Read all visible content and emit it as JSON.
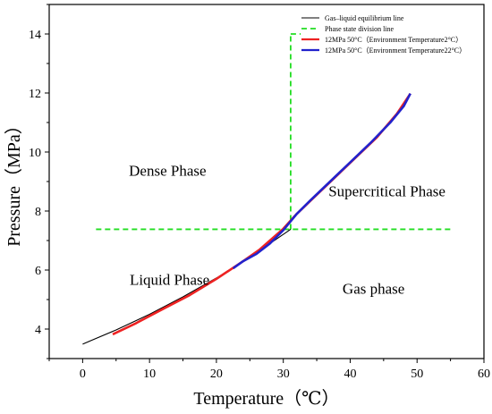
{
  "chart_data": {
    "type": "line",
    "xlabel": "Temperature（℃）",
    "ylabel": "Pressure（MPa）",
    "xlim": [
      -5,
      60
    ],
    "ylim": [
      3,
      15
    ],
    "x_ticks": [
      "0",
      "10",
      "20",
      "30",
      "40",
      "50",
      "60"
    ],
    "y_ticks": [
      "4",
      "6",
      "8",
      "10",
      "12",
      "14"
    ],
    "grid": false,
    "legend_position": "top-right",
    "colors": {
      "equilibrium": "#000000",
      "division": "#22dd22",
      "env2": "#ee2222",
      "env22": "#2222cc"
    },
    "series": [
      {
        "name": "Gas–liquid equilibrium line",
        "x": [
          0,
          5,
          10,
          15,
          20,
          25,
          31.1
        ],
        "y": [
          3.49,
          3.97,
          4.5,
          5.09,
          5.73,
          6.43,
          7.38
        ]
      },
      {
        "name": "Phase state division line",
        "segments": [
          {
            "x": [
              2,
              55
            ],
            "y": [
              7.38,
              7.38
            ]
          },
          {
            "x": [
              31.1,
              31.1
            ],
            "y": [
              7.38,
              14.0
            ]
          },
          {
            "x": [
              31.1,
              32.6
            ],
            "y": [
              14.0,
              14.0
            ]
          }
        ]
      },
      {
        "name": "12MPa 50°C（Environment Temperature2°C）",
        "x": [
          4.5,
          8,
          12,
          16,
          20,
          24,
          26.5,
          28,
          30,
          32,
          35,
          38,
          41,
          44,
          47,
          49
        ],
        "y": [
          3.82,
          4.2,
          4.68,
          5.15,
          5.7,
          6.3,
          6.7,
          7.0,
          7.4,
          7.9,
          8.55,
          9.2,
          9.85,
          10.5,
          11.3,
          11.98
        ]
      },
      {
        "name": "12MPa 50°C（Environment Temperature22°C）",
        "x": [
          22.5,
          24,
          26,
          28,
          30,
          32,
          34,
          37,
          40,
          43,
          46,
          48,
          49
        ],
        "y": [
          6.06,
          6.3,
          6.55,
          6.9,
          7.35,
          7.9,
          8.35,
          9.0,
          9.65,
          10.3,
          11.0,
          11.55,
          11.98
        ]
      }
    ],
    "annotations": [
      {
        "text": "Dense Phase",
        "x": 12.7,
        "y": 9.2
      },
      {
        "text": "Supercritical Phase",
        "x": 45.5,
        "y": 8.5
      },
      {
        "text": "Liquid Phase",
        "x": 13.0,
        "y": 5.5
      },
      {
        "text": "Gas phase",
        "x": 43.5,
        "y": 5.2
      }
    ]
  }
}
